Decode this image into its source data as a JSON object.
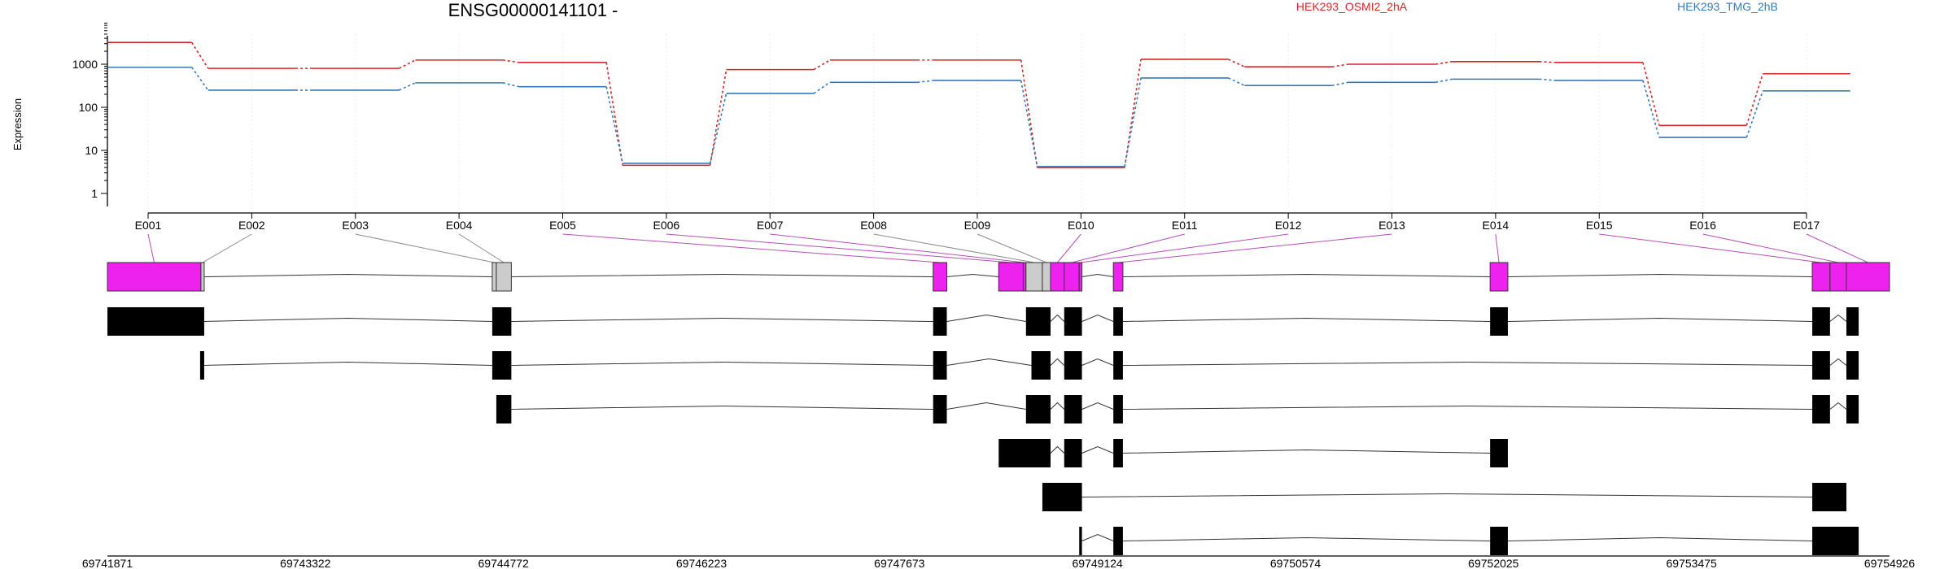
{
  "chart_data": {
    "type": "line",
    "title": "ENSG00000141101 -",
    "ylabel": "Expression",
    "y_scale": "log",
    "y_ticks": [
      {
        "value": 1,
        "label": "1"
      },
      {
        "value": 10,
        "label": "10"
      },
      {
        "value": 100,
        "label": "100"
      },
      {
        "value": 1000,
        "label": "1000"
      }
    ],
    "categories": [
      "E001",
      "E002",
      "E003",
      "E004",
      "E005",
      "E006",
      "E007",
      "E008",
      "E009",
      "E010",
      "E011",
      "E012",
      "E013",
      "E014",
      "E015",
      "E016",
      "E017"
    ],
    "series": [
      {
        "name": "HEK293_OSMI2_2hA",
        "color": "#d62728",
        "values": [
          3200,
          800,
          800,
          1250,
          1100,
          4.5,
          750,
          1250,
          1250,
          4,
          1300,
          870,
          1000,
          1150,
          1100,
          38,
          600
        ]
      },
      {
        "name": "HEK293_TMG_2hB",
        "color": "#3579b8",
        "values": [
          850,
          250,
          250,
          370,
          300,
          5,
          210,
          380,
          420,
          4.2,
          480,
          320,
          380,
          450,
          420,
          20,
          240
        ]
      }
    ],
    "genomic_axis": {
      "start": 69741871,
      "end": 69754926,
      "tick_labels": [
        "69741871",
        "69743322",
        "69744772",
        "69746223",
        "69747673",
        "69749124",
        "69750574",
        "69752025",
        "69753475",
        "69754926"
      ]
    },
    "exon_bins": [
      {
        "label": "E001",
        "start": 69741871,
        "end": 69742556,
        "highlighted": true
      },
      {
        "label": "E002",
        "start": 69742556,
        "end": 69742580,
        "highlighted": false
      },
      {
        "label": "E003",
        "start": 69744690,
        "end": 69744720,
        "highlighted": false
      },
      {
        "label": "E004",
        "start": 69744720,
        "end": 69744830,
        "highlighted": false
      },
      {
        "label": "E005",
        "start": 69747920,
        "end": 69748020,
        "highlighted": true
      },
      {
        "label": "E006",
        "start": 69748400,
        "end": 69748580,
        "highlighted": true
      },
      {
        "label": "E007",
        "start": 69748580,
        "end": 69748600,
        "highlighted": true
      },
      {
        "label": "E008",
        "start": 69748600,
        "end": 69748720,
        "highlighted": false
      },
      {
        "label": "E009",
        "start": 69748720,
        "end": 69748780,
        "highlighted": false
      },
      {
        "label": "E010",
        "start": 69748780,
        "end": 69748880,
        "highlighted": true
      },
      {
        "label": "E011",
        "start": 69748880,
        "end": 69748990,
        "highlighted": true
      },
      {
        "label": "E012",
        "start": 69748990,
        "end": 69749010,
        "highlighted": true
      },
      {
        "label": "E013",
        "start": 69749240,
        "end": 69749310,
        "highlighted": true
      },
      {
        "label": "E014",
        "start": 69752000,
        "end": 69752130,
        "highlighted": true
      },
      {
        "label": "E015",
        "start": 69754360,
        "end": 69754490,
        "highlighted": true
      },
      {
        "label": "E016",
        "start": 69754490,
        "end": 69754610,
        "highlighted": true
      },
      {
        "label": "E017",
        "start": 69754610,
        "end": 69754926,
        "highlighted": true
      }
    ],
    "transcripts": [
      {
        "exons": [
          [
            69741871,
            69742580
          ],
          [
            69744690,
            69744830
          ],
          [
            69747920,
            69748020
          ],
          [
            69748600,
            69748780
          ],
          [
            69748880,
            69749010
          ],
          [
            69749240,
            69749310
          ],
          [
            69752000,
            69752130
          ],
          [
            69754360,
            69754490
          ],
          [
            69754610,
            69754700
          ]
        ]
      },
      {
        "exons": [
          [
            69742550,
            69742580
          ],
          [
            69744690,
            69744830
          ],
          [
            69747920,
            69748020
          ],
          [
            69748640,
            69748780
          ],
          [
            69748880,
            69749010
          ],
          [
            69749240,
            69749310
          ],
          [
            69754360,
            69754490
          ],
          [
            69754610,
            69754700
          ]
        ]
      },
      {
        "exons": [
          [
            69744720,
            69744830
          ],
          [
            69747920,
            69748020
          ],
          [
            69748600,
            69748780
          ],
          [
            69748880,
            69749010
          ],
          [
            69749240,
            69749310
          ],
          [
            69754360,
            69754490
          ],
          [
            69754610,
            69754700
          ]
        ]
      },
      {
        "exons": [
          [
            69748400,
            69748780
          ],
          [
            69748880,
            69749010
          ],
          [
            69749240,
            69749310
          ],
          [
            69752000,
            69752130
          ]
        ]
      },
      {
        "exons": [
          [
            69748720,
            69749010
          ],
          [
            69754360,
            69754610
          ]
        ]
      },
      {
        "exons": [
          [
            69748990,
            69749010
          ],
          [
            69749240,
            69749310
          ],
          [
            69752000,
            69752130
          ],
          [
            69754360,
            69754700
          ]
        ]
      }
    ]
  }
}
